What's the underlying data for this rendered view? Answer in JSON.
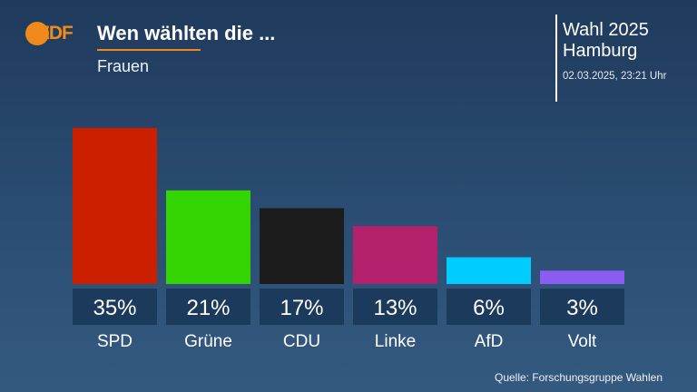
{
  "header": {
    "logo": "ZDF",
    "title": "Wen wählten die ...",
    "subtitle": "Frauen",
    "election": "Wahl 2025",
    "region": "Hamburg",
    "timestamp": "02.03.2025, 23:21 Uhr"
  },
  "footer": {
    "source": "Quelle: Forschungsgruppe Wahlen"
  },
  "colors": {
    "accent": "#f08a1c",
    "background": "#2b4d73",
    "label_box": "#1c3a5c"
  },
  "chart_data": {
    "type": "bar",
    "title": "Wen wählten die ...",
    "subtitle": "Frauen",
    "categories": [
      "SPD",
      "Grüne",
      "CDU",
      "Linke",
      "AfD",
      "Volt"
    ],
    "values": [
      35,
      21,
      17,
      13,
      6,
      3
    ],
    "value_labels": [
      "35%",
      "21%",
      "17%",
      "13%",
      "6%",
      "3%"
    ],
    "colors": [
      "#cc1f00",
      "#33d400",
      "#1c1c1c",
      "#b3216c",
      "#00ccff",
      "#8a5cf0"
    ],
    "unit": "%",
    "grid": false,
    "legend": "none"
  }
}
